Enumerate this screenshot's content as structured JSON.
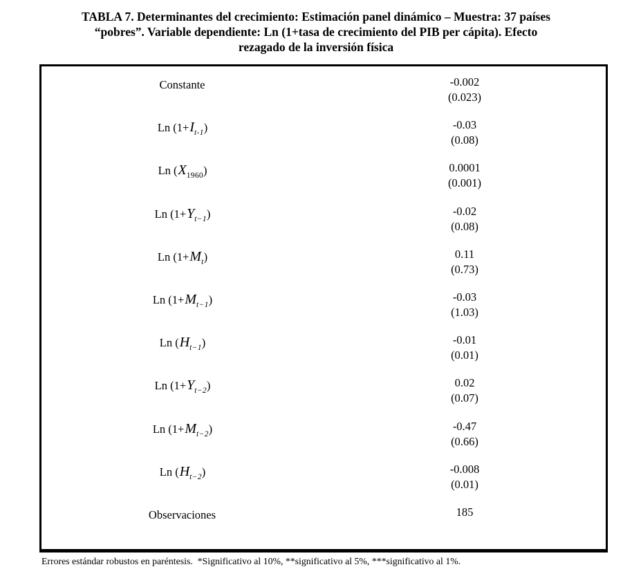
{
  "title": {
    "lines": [
      "TABLA 7. Determinantes del crecimiento: Estimación panel dinámico – Muestra: 37 países",
      "“pobres”. Variable dependiente: Ln (1+tasa de crecimiento del PIB per cápita). Efecto",
      "rezagado de la inversión física"
    ]
  },
  "table": {
    "rows": [
      {
        "label": {
          "pre": "Constante",
          "var": "",
          "sub": "",
          "post": ""
        },
        "coef": "-0.002",
        "se": "(0.023)"
      },
      {
        "label": {
          "pre": "Ln (1+",
          "var": "I",
          "sub": "t-1",
          "post": ")"
        },
        "coef": "-0.03",
        "se": "(0.08)"
      },
      {
        "label": {
          "pre": "Ln (",
          "var": "X",
          "sub": "1960",
          "post": ")"
        },
        "coef": "0.0001",
        "se": "(0.001)"
      },
      {
        "label": {
          "pre": "Ln (1+",
          "var": "Y",
          "sub": "t−1",
          "post": ")"
        },
        "coef": "-0.02",
        "se": "(0.08)"
      },
      {
        "label": {
          "pre": "Ln (1+",
          "var": "M",
          "sub": "t",
          "post": ")"
        },
        "coef": "0.11",
        "se": "(0.73)"
      },
      {
        "label": {
          "pre": "Ln (1+",
          "var": "M",
          "sub": "t−1",
          "post": ")"
        },
        "coef": "-0.03",
        "se": "(1.03)"
      },
      {
        "label": {
          "pre": "Ln (",
          "var": "H",
          "sub": "t−1",
          "post": ")"
        },
        "coef": "-0.01",
        "se": "(0.01)"
      },
      {
        "label": {
          "pre": "Ln (1+",
          "var": "Y",
          "sub": "t−2",
          "post": ")"
        },
        "coef": "0.02",
        "se": "(0.07)"
      },
      {
        "label": {
          "pre": "Ln (1+",
          "var": "M",
          "sub": "t−2",
          "post": ")"
        },
        "coef": "-0.47",
        "se": "(0.66)"
      },
      {
        "label": {
          "pre": "Ln (",
          "var": "H",
          "sub": "t−2",
          "post": ")"
        },
        "coef": "-0.008",
        "se": "(0.01)"
      },
      {
        "label": {
          "pre": "Observaciones",
          "var": "",
          "sub": "",
          "post": ""
        },
        "coef": "185",
        "se": ""
      }
    ]
  },
  "footnote": "Errores estándar robustos en paréntesis.  *Significativo al 10%, **significativo al 5%, ***significativo al 1%."
}
